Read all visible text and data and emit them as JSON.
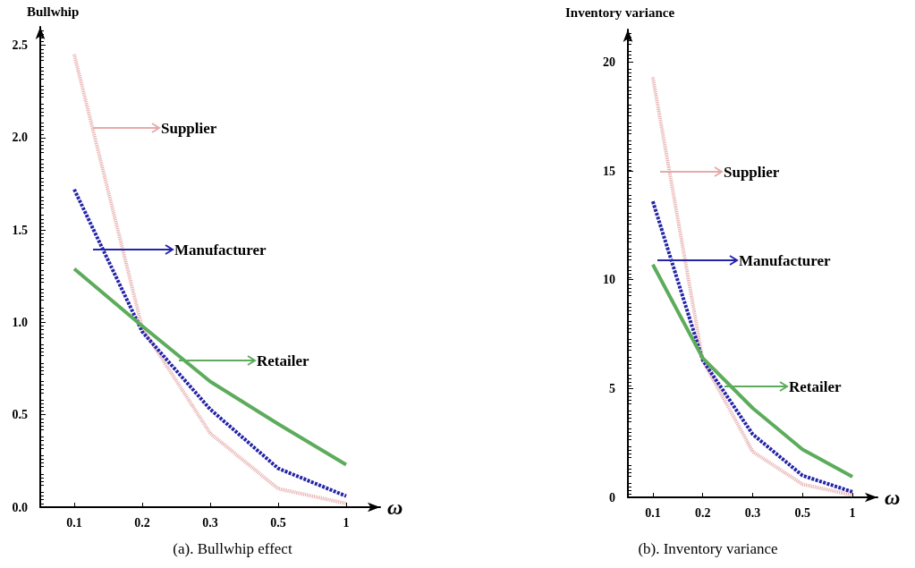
{
  "chart_data": [
    {
      "type": "line",
      "title": "(a). Bullwhip effect",
      "ylabel": "Bullwhip",
      "xlabel": "ω",
      "categories": [
        "0.1",
        "0.2",
        "0.3",
        "0.5",
        "1"
      ],
      "series": [
        {
          "name": "Supplier",
          "color": "#e6aaaa",
          "line_style": "dotted",
          "values": [
            2.45,
            0.97,
            0.4,
            0.1,
            0.02
          ]
        },
        {
          "name": "Manufacturer",
          "color": "#2424a8",
          "line_style": "dashed",
          "values": [
            1.72,
            0.95,
            0.53,
            0.21,
            0.06
          ]
        },
        {
          "name": "Retailer",
          "color": "#5cac5c",
          "line_style": "solid",
          "values": [
            1.29,
            0.98,
            0.68,
            0.45,
            0.23
          ]
        }
      ],
      "ylim": [
        0,
        2.6
      ],
      "yticks": [
        {
          "value": 0,
          "label": "0.0"
        },
        0.5,
        {
          "value": 1,
          "label": "1.0"
        },
        1.5,
        {
          "value": 2,
          "label": "2.0"
        },
        2.5
      ],
      "grid": false,
      "legend": "right",
      "marker": "none"
    },
    {
      "type": "line",
      "title": "(b). Inventory variance",
      "ylabel": "Inventory variance",
      "xlabel": "ω",
      "categories": [
        "0.1",
        "0.2",
        "0.3",
        "0.5",
        "1"
      ],
      "series": [
        {
          "name": "Supplier",
          "color": "#e6aaaa",
          "line_style": "dotted",
          "values": [
            19.3,
            6.3,
            2.1,
            0.6,
            0.1
          ]
        },
        {
          "name": "Manufacturer",
          "color": "#2424a8",
          "line_style": "dashed",
          "values": [
            13.6,
            6.3,
            2.9,
            1.0,
            0.25
          ]
        },
        {
          "name": "Retailer",
          "color": "#5cac5c",
          "line_style": "solid",
          "values": [
            10.7,
            6.4,
            4.1,
            2.2,
            0.95
          ]
        }
      ],
      "ylim": [
        0,
        21.5
      ],
      "yticks": [
        0,
        5,
        10,
        15,
        20
      ],
      "grid": false,
      "legend": "right",
      "marker": "none"
    }
  ]
}
